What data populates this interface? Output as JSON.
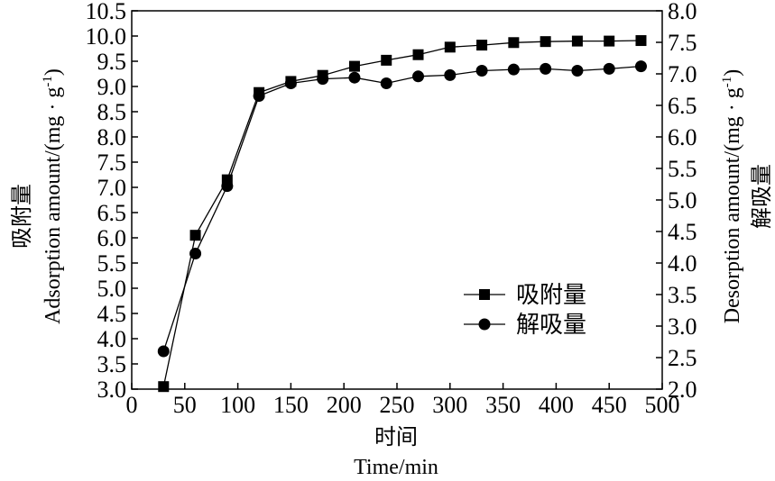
{
  "chart_data": {
    "type": "line",
    "x": [
      30,
      60,
      90,
      120,
      150,
      180,
      210,
      240,
      270,
      300,
      330,
      360,
      390,
      420,
      450,
      480
    ],
    "series": [
      {
        "name": "吸附量",
        "axis": "left",
        "marker": "square",
        "values": [
          3.05,
          6.05,
          7.15,
          8.88,
          9.1,
          9.22,
          9.4,
          9.52,
          9.63,
          9.78,
          9.82,
          9.87,
          9.89,
          9.9,
          9.9,
          9.91
        ]
      },
      {
        "name": "解吸量",
        "axis": "right",
        "marker": "circle",
        "values": [
          2.6,
          4.15,
          5.22,
          6.65,
          6.85,
          6.92,
          6.94,
          6.85,
          6.96,
          6.98,
          7.05,
          7.07,
          7.08,
          7.05,
          7.08,
          7.12
        ]
      }
    ],
    "xlabel_cn": "时间",
    "xlabel_en": "Time/min",
    "ylabel_left_cn": "吸附量",
    "ylabel_left_en": "Adsorption amount/(mg · g",
    "ylabel_left_sup": "-1",
    "ylabel_left_close": ")",
    "ylabel_right_cn": "解吸量",
    "ylabel_right_en": "Desorption amount/(mg · g",
    "ylabel_right_sup": "-1",
    "ylabel_right_close": ")",
    "xlim": [
      0,
      500
    ],
    "ylim_left": [
      3.0,
      10.5
    ],
    "ylim_right": [
      2.0,
      8.0
    ],
    "x_ticks": [
      "0",
      "50",
      "100",
      "150",
      "200",
      "250",
      "300",
      "350",
      "400",
      "450",
      "500"
    ],
    "y_ticks_left": [
      "3.0",
      "3.5",
      "4.0",
      "4.5",
      "5.0",
      "5.5",
      "6.0",
      "6.5",
      "7.0",
      "7.5",
      "8.0",
      "8.5",
      "9.0",
      "9.5",
      "10.0",
      "10.5"
    ],
    "y_ticks_right": [
      "2.0",
      "2.5",
      "3.0",
      "3.5",
      "4.0",
      "4.5",
      "5.0",
      "5.5",
      "6.0",
      "6.5",
      "7.0",
      "7.5",
      "8.0"
    ],
    "legend_position": "bottom-right",
    "grid": false
  }
}
